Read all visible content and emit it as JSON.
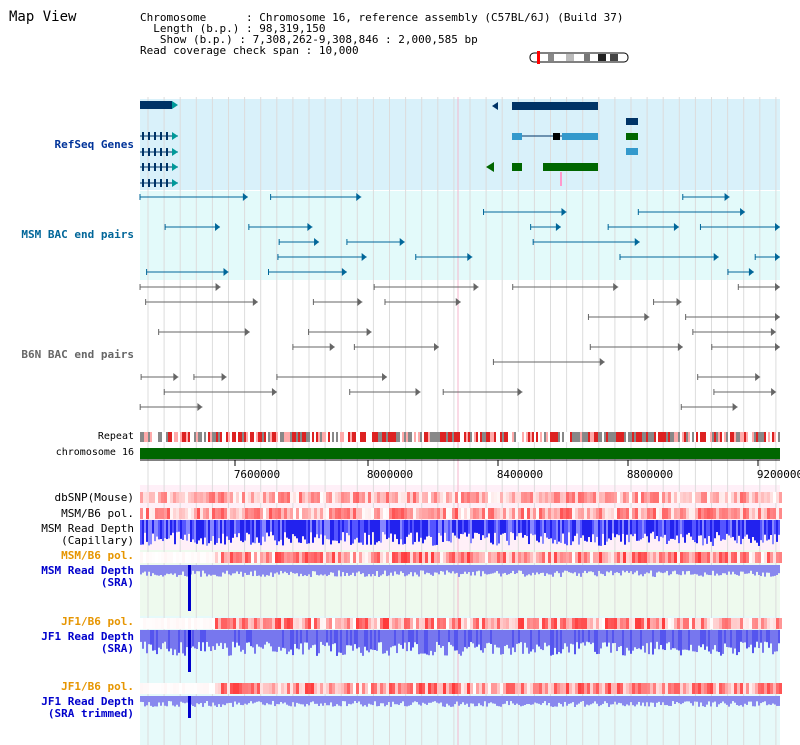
{
  "page": {
    "title": "Map View"
  },
  "info": {
    "chromosome_label": "Chromosome    ",
    "chromosome_value": "Chromosome 16, reference assembly (C57BL/6J) (Build 37)",
    "length_label": "Length (b.p.)",
    "length_value": "98,319,150",
    "show_label": " Show (b.p.)",
    "show_value": "7,308,262-9,308,846 : 2,000,585 bp",
    "span_label": "Read coverage check span",
    "span_value": "10,000"
  },
  "tracks": {
    "refseq": {
      "label": "RefSeq Genes",
      "color": "#003399"
    },
    "msm_bac": {
      "label": "MSM BAC end pairs",
      "color": "#006699"
    },
    "b6n_bac": {
      "label": "B6N BAC end pairs",
      "color": "#666666"
    },
    "repeat": {
      "label": "Repeat"
    },
    "chromosome": {
      "label": "chromosome 16"
    },
    "dbsnp": {
      "label": "dbSNP(Mouse)"
    },
    "msm_b6_pol_1": {
      "label": "MSM/B6 pol."
    },
    "msm_depth_cap": {
      "label1": "MSM Read Depth",
      "label2": "(Capillary)"
    },
    "msm_b6_pol_2": {
      "label": "MSM/B6 pol.",
      "color": "#e69500"
    },
    "msm_depth_sra": {
      "label1": "MSM Read Depth",
      "label2": "(SRA)",
      "color": "#0000cc"
    },
    "jf1_b6_pol_1": {
      "label": "JF1/B6 pol.",
      "color": "#e69500"
    },
    "jf1_depth_sra": {
      "label1": "JF1 Read Depth",
      "label2": "(SRA)",
      "color": "#0000cc"
    },
    "jf1_b6_pol_2": {
      "label": "JF1/B6 pol.",
      "color": "#e69500"
    },
    "jf1_depth_trim": {
      "label1": "JF1 Read Depth",
      "label2": "(SRA trimmed)",
      "color": "#0000cc"
    }
  },
  "axis": {
    "ticks": [
      "7600000",
      "8000000",
      "8400000",
      "8800000",
      "9200000"
    ]
  }
}
